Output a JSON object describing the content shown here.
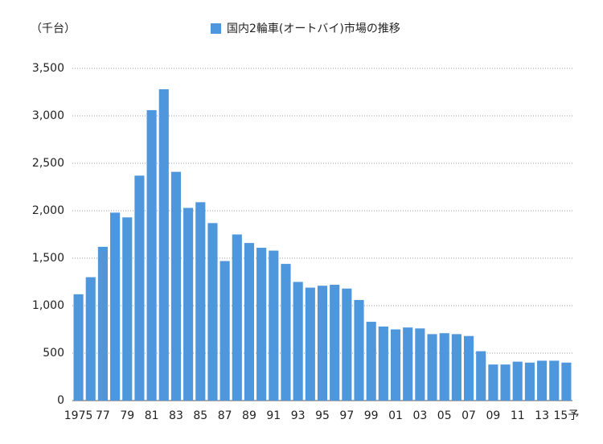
{
  "chart_data": {
    "type": "bar",
    "y_label": "（千台）",
    "categories": [
      "1975",
      null,
      "77",
      null,
      "79",
      null,
      "81",
      null,
      "83",
      null,
      "85",
      null,
      "87",
      null,
      "89",
      null,
      "91",
      null,
      "93",
      null,
      "95",
      null,
      "97",
      null,
      "99",
      null,
      "01",
      null,
      "03",
      null,
      "05",
      null,
      "07",
      null,
      "09",
      null,
      "11",
      null,
      "13",
      null,
      "15予"
    ],
    "series": [
      {
        "name": "国内2輪車(オートバイ)市場の推移",
        "color": "#4f97dc",
        "values": [
          1120,
          1300,
          1620,
          1980,
          1930,
          2370,
          3060,
          3280,
          2410,
          2030,
          2090,
          1870,
          1470,
          1750,
          1660,
          1610,
          1580,
          1440,
          1250,
          1190,
          1210,
          1220,
          1180,
          1060,
          830,
          780,
          750,
          770,
          760,
          700,
          710,
          700,
          680,
          520,
          380,
          380,
          410,
          400,
          420,
          420,
          400
        ]
      }
    ],
    "ylim": [
      0,
      3500
    ],
    "yticks": [
      0,
      500,
      {
        "value": 1000,
        "label": "1,000"
      },
      {
        "value": 1500,
        "label": "1,500"
      },
      {
        "value": 2000,
        "label": "2,000"
      },
      {
        "value": 2500,
        "label": "2,500"
      },
      {
        "value": 3000,
        "label": "3,000"
      },
      {
        "value": 3500,
        "label": "3,500"
      }
    ],
    "grid": true
  }
}
